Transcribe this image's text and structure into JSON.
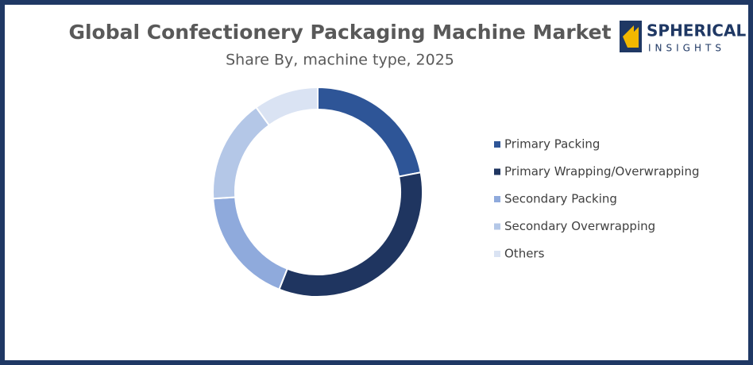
{
  "chart_data": {
    "type": "pie",
    "donut": true,
    "title": "Global Confectionery Packaging Machine Market",
    "subtitle": "Share By, machine type, 2025",
    "categories": [
      "Primary Packing",
      "Primary Wrapping/Overwrapping",
      "Secondary Packing",
      "Secondary Overwrapping",
      "Others"
    ],
    "values": [
      22,
      34,
      18,
      16,
      10
    ],
    "colors": [
      "#2e5597",
      "#1f3560",
      "#8faadc",
      "#b4c7e7",
      "#dae3f3"
    ],
    "legend": "right"
  },
  "logo": {
    "line1": "SPHERICAL",
    "line2": "INSIGHTS"
  }
}
